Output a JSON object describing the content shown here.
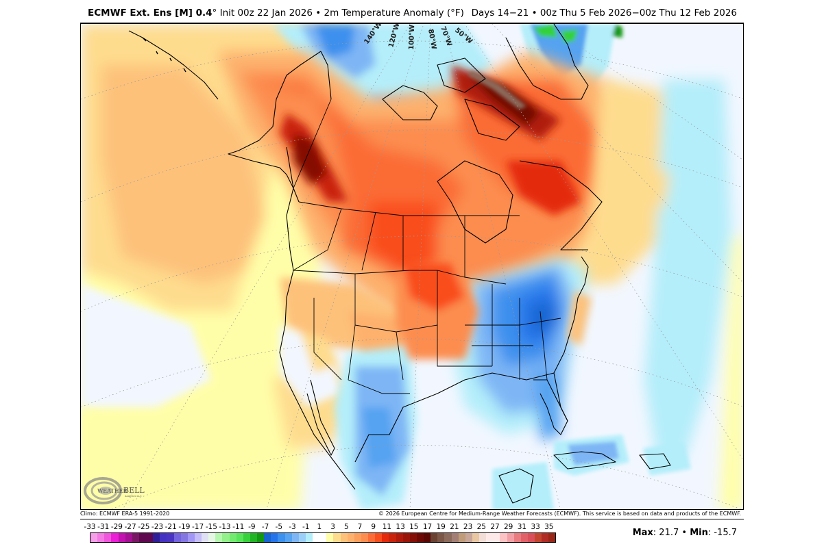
{
  "header": {
    "model_bold": "ECMWF Ext. Ens [M] 0.4",
    "degree_sign": "°",
    "init_and_field": " Init 00z 22 Jan 2026 • 2m Temperature Anomaly (°F)",
    "valid_range": "Days 14−21 • 00z Thu 5 Feb 2026−00z Thu 12 Feb 2026"
  },
  "map": {
    "projection": "polar stereographic (North America)",
    "longitude_labels": [
      "140°W",
      "120°W",
      "100°W",
      "80°W",
      "70°W",
      "50°W"
    ],
    "logo_text": "WeatherBELL",
    "logo_subtext": "Analytics LLC",
    "regions": {
      "warm_core": "Western Canada / Alaska / Northern Plains / Hudson Bay / Baffin Island",
      "cold_core": "Eastern US / Southeast / Mid-Atlantic",
      "cool_secondary": "Southwest US / Mexico / Arctic Ocean / Greenland interior"
    }
  },
  "footer": {
    "climo": "Climo: ECMWF ERA-5 1991-2020",
    "copyright": "© 2026 European Centre for Medium-Range Weather Forecasts (ECMWF). This service is based on data and products of the ECMWF.",
    "max_label": "Max",
    "max_value": ": 21.7 • ",
    "min_label": "Min",
    "min_value": ": -15.7"
  },
  "colorbar": {
    "units": "°F",
    "tick_labels": [
      "-33",
      "-31",
      "-29",
      "-27",
      "-25",
      "-23",
      "-21",
      "-19",
      "-17",
      "-15",
      "-13",
      "-11",
      "-9",
      "-7",
      "-5",
      "-3",
      "-1",
      "1",
      "3",
      "5",
      "7",
      "9",
      "11",
      "13",
      "15",
      "17",
      "19",
      "21",
      "23",
      "25",
      "27",
      "29",
      "31",
      "33",
      "35"
    ],
    "colors": [
      "#f79ee8",
      "#f47ae4",
      "#ef56dc",
      "#ea1fd6",
      "#c211ae",
      "#a40f93",
      "#7a1765",
      "#5f0850",
      "#5f0850",
      "#2e1e98",
      "#4433c2",
      "#4a35c3",
      "#7464de",
      "#8577e2",
      "#a297f6",
      "#c4bdfa",
      "#e0e0f4",
      "#e6f7e6",
      "#b6f7b0",
      "#93f08a",
      "#72ea70",
      "#58e45a",
      "#36d13b",
      "#21b424",
      "#129812",
      "#1765cf",
      "#2574ea",
      "#3c90ee",
      "#55a3f1",
      "#7eb6f5",
      "#9ccff7",
      "#b4eefa",
      "#ffffff",
      "#ffffff",
      "#fffea8",
      "#fedc8e",
      "#fdc17a",
      "#fdb16d",
      "#fc9e5c",
      "#fc8d4f",
      "#fb6c36",
      "#f94d1e",
      "#e42a0a",
      "#c9230c",
      "#b01a0b",
      "#9b1408",
      "#850e06",
      "#6d0904",
      "#5a0603",
      "#6b4232",
      "#7c5646",
      "#8c6a5c",
      "#a27e74",
      "#bf9b7a",
      "#c8a698",
      "#e8c7a2",
      "#f2ded6",
      "#fde9e8",
      "#fde9e8",
      "#fdc3c4",
      "#f39fa6",
      "#e97c80",
      "#e26168",
      "#d9505a",
      "#c4452f",
      "#b22c26",
      "#9a2618"
    ]
  },
  "chart_data": {
    "type": "heatmap",
    "title": "ECMWF Ext. Ens [M] 0.4° Init 00z 22 Jan 2026 • 2m Temperature Anomaly (°F)",
    "subtitle": "Days 14−21 • 00z Thu 5 Feb 2026−00z Thu 12 Feb 2026",
    "variable": "2m Temperature Anomaly",
    "units": "°F",
    "colorbar_ticks": [
      -33,
      -31,
      -29,
      -27,
      -25,
      -23,
      -21,
      -19,
      -17,
      -15,
      -13,
      -11,
      -9,
      -7,
      -5,
      -3,
      -1,
      1,
      3,
      5,
      7,
      9,
      11,
      13,
      15,
      17,
      19,
      21,
      23,
      25,
      27,
      29,
      31,
      33,
      35
    ],
    "range": [
      -33,
      35
    ],
    "max": 21.7,
    "min": -15.7,
    "climatology": "ECMWF ERA-5 1991-2020",
    "notable_anomalies": [
      {
        "region": "NE Canada / Baffin Island / Davis Strait",
        "approx_anomaly_F": 19
      },
      {
        "region": "Yukon / Northern British Columbia",
        "approx_anomaly_F": 15
      },
      {
        "region": "Saskatchewan / Manitoba / Northern Plains",
        "approx_anomaly_F": 11
      },
      {
        "region": "Northern Quebec / Labrador",
        "approx_anomaly_F": 11
      },
      {
        "region": "Virginia / Mid-Atlantic",
        "approx_anomaly_F": -7
      },
      {
        "region": "Ohio Valley / Southeast US / Florida",
        "approx_anomaly_F": -5
      },
      {
        "region": "New Mexico / Northern Mexico",
        "approx_anomaly_F": -3
      },
      {
        "region": "Beaufort Sea / Arctic Ocean",
        "approx_anomaly_F": -5
      },
      {
        "region": "Greenland interior",
        "approx_anomaly_F": -7
      }
    ]
  }
}
